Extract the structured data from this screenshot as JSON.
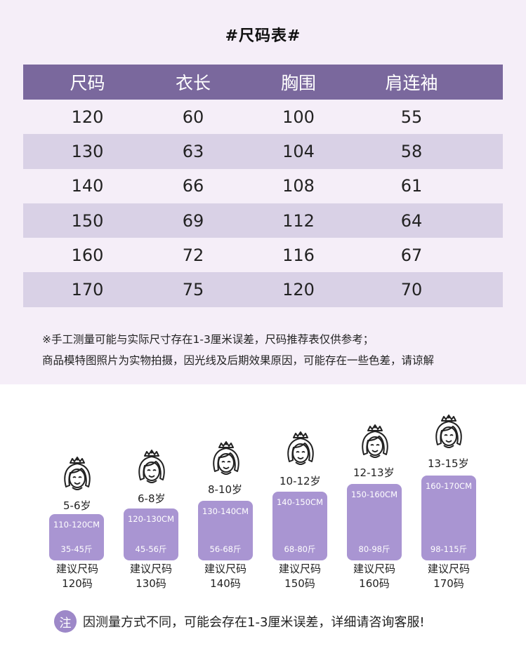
{
  "title": "#尺码表#",
  "table": {
    "headers": [
      "尺码",
      "衣长",
      "胸围",
      "肩连袖"
    ],
    "rows": [
      [
        "120",
        "60",
        "100",
        "55"
      ],
      [
        "130",
        "63",
        "104",
        "58"
      ],
      [
        "140",
        "66",
        "108",
        "61"
      ],
      [
        "150",
        "69",
        "112",
        "64"
      ],
      [
        "160",
        "72",
        "116",
        "67"
      ],
      [
        "170",
        "75",
        "120",
        "70"
      ]
    ]
  },
  "notes": [
    "※手工测量可能与实际尺寸存在1-3厘米误差，尺码推荐表仅供参考；",
    "商品模特图照片为实物拍摄，因光线及后期效果原因，可能存在一些色差，请谅解"
  ],
  "size_guide": [
    {
      "age": "5-6岁",
      "height": "110-120CM",
      "weight": "35-45斤",
      "rec_label": "建议尺码",
      "rec_size": "120码"
    },
    {
      "age": "6-8岁",
      "height": "120-130CM",
      "weight": "45-56斤",
      "rec_label": "建议尺码",
      "rec_size": "130码"
    },
    {
      "age": "8-10岁",
      "height": "130-140CM",
      "weight": "56-68斤",
      "rec_label": "建议尺码",
      "rec_size": "140码"
    },
    {
      "age": "10-12岁",
      "height": "140-150CM",
      "weight": "68-80斤",
      "rec_label": "建议尺码",
      "rec_size": "150码"
    },
    {
      "age": "12-13岁",
      "height": "150-160CM",
      "weight": "80-98斤",
      "rec_label": "建议尺码",
      "rec_size": "160码"
    },
    {
      "age": "13-15岁",
      "height": "160-170CM",
      "weight": "98-115斤",
      "rec_label": "建议尺码",
      "rec_size": "170码"
    }
  ],
  "footnote": {
    "badge": "注",
    "text": "因测量方式不同，可能会存在1-3厘米误差，详细请咨询客服!"
  },
  "colors": {
    "top_background": "#f5eef8",
    "header_purple": "#7a689d",
    "row_alt": "#d9d1e6",
    "box_purple": "#a995d2",
    "badge_purple": "#9d88c8"
  },
  "icons": [
    "girl-crown-face-icon"
  ]
}
